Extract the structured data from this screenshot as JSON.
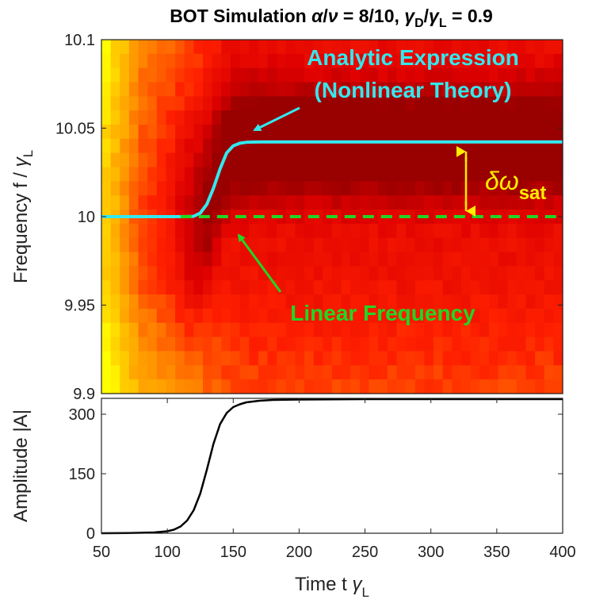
{
  "chart_data": [
    {
      "type": "heatmap",
      "title_parts": {
        "prefix": "BOT Simulation ",
        "alpha": "α",
        "slash1": "/",
        "nu": "ν",
        "mid": " = 8/10, ",
        "gamma1": "γ",
        "sub1": "D",
        "slash2": "/",
        "gamma2": "γ",
        "sub2": "L",
        "suffix": " = 0.9"
      },
      "ylabel_parts": {
        "main": "Frequency f / ",
        "gamma": "γ",
        "sub": "L"
      },
      "xlim": [
        50,
        400
      ],
      "ylim": [
        9.9,
        10.1
      ],
      "yticks": [
        "9.9",
        "9.95",
        "10",
        "10.05",
        "10.1"
      ],
      "grid": false,
      "colormap": [
        "#ffff00",
        "#ffc000",
        "#ff8000",
        "#ff2000",
        "#dd0000",
        "#990000"
      ],
      "series": [
        {
          "name": "Analytic Expression (Nonlinear Theory)",
          "color": "#33e8ee",
          "x": [
            50,
            110,
            120,
            125,
            130,
            135,
            140,
            145,
            150,
            155,
            160,
            170,
            200,
            300,
            400
          ],
          "y": [
            10.0,
            10.0,
            10.0002,
            10.002,
            10.007,
            10.016,
            10.027,
            10.036,
            10.04,
            10.0415,
            10.042,
            10.0422,
            10.0422,
            10.0422,
            10.0422
          ]
        },
        {
          "name": "Linear Frequency",
          "color": "#22d622",
          "style": "dashed",
          "x": [
            110,
            400
          ],
          "y": [
            10.0,
            10.0
          ]
        }
      ],
      "annotations": {
        "analytic_line1": "Analytic Expression",
        "analytic_line2": "(Nonlinear Theory)",
        "linear": "Linear Frequency",
        "delta_symbol": "δω",
        "delta_sub": "sat"
      }
    },
    {
      "type": "line",
      "ylabel": "Amplitude |A|",
      "xlabel_parts": {
        "main": "Time t ",
        "gamma": "γ",
        "sub": "L"
      },
      "xlim": [
        50,
        400
      ],
      "ylim": [
        0,
        340
      ],
      "xticks": [
        "50",
        "100",
        "150",
        "200",
        "250",
        "300",
        "350",
        "400"
      ],
      "yticks": [
        "0",
        "150",
        "300"
      ],
      "grid": false,
      "series": [
        {
          "color": "#000000",
          "x": [
            50,
            70,
            90,
            100,
            105,
            110,
            115,
            120,
            125,
            130,
            135,
            140,
            145,
            150,
            155,
            160,
            170,
            180,
            200,
            250,
            300,
            400
          ],
          "y": [
            0,
            0.4,
            2,
            5,
            9,
            17,
            32,
            58,
            100,
            160,
            225,
            275,
            303,
            318,
            325,
            330,
            334,
            336,
            337,
            338,
            338,
            338
          ]
        }
      ]
    }
  ]
}
